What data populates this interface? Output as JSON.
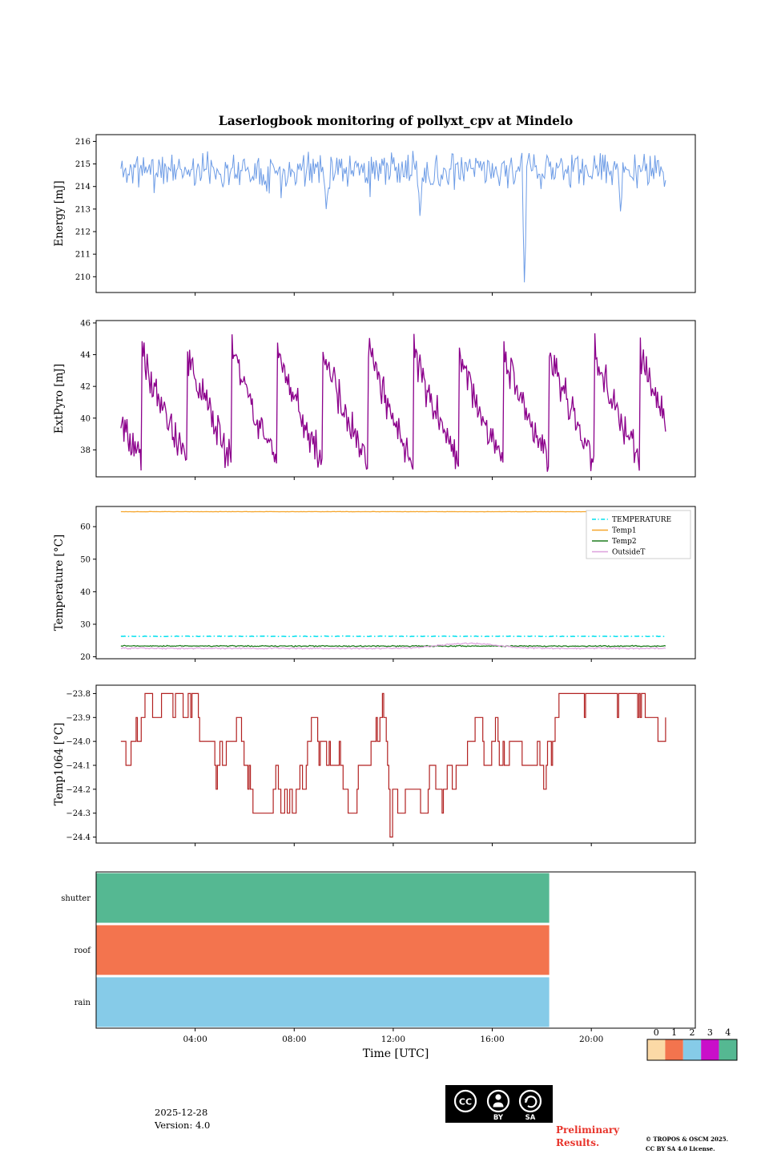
{
  "title": "Laserlogbook monitoring of pollyxt_cpv at Mindelo",
  "x_axis": {
    "label": "Time [UTC]",
    "range_hours": [
      0,
      24.2
    ],
    "tick_hours": [
      4,
      8,
      12,
      16,
      20
    ],
    "tick_labels": [
      "04:00",
      "08:00",
      "12:00",
      "16:00",
      "20:00"
    ]
  },
  "chart_data": [
    {
      "type": "line",
      "name": "energy",
      "ylabel": "Energy [mJ]",
      "ylim": [
        209.3,
        216.3
      ],
      "yticks": [
        210,
        211,
        212,
        213,
        214,
        215,
        216
      ],
      "ytick_labels": [
        "210",
        "211",
        "212",
        "213",
        "214",
        "215",
        "216"
      ],
      "x_data_range": [
        1.0,
        23.0
      ],
      "series": [
        {
          "name": "Energy",
          "color": "#6d9ce6",
          "style": "solid",
          "width": 1.0,
          "baseline": 214.75,
          "noise": 0.55,
          "spike_prob": 0.045,
          "spike_depth": 1.0,
          "dips": [
            {
              "x": 9.3,
              "y": 213.0
            },
            {
              "x": 13.1,
              "y": 212.7
            },
            {
              "x": 17.3,
              "y": 209.75
            },
            {
              "x": 21.2,
              "y": 212.9
            }
          ]
        }
      ]
    },
    {
      "type": "line",
      "name": "extpyro",
      "ylabel": "ExtPyro [mJ]",
      "ylim": [
        36.3,
        46.15
      ],
      "yticks": [
        38,
        40,
        42,
        44,
        46
      ],
      "ytick_labels": [
        "38",
        "40",
        "42",
        "44",
        "46"
      ],
      "x_data_range": [
        1.0,
        23.0
      ],
      "series": [
        {
          "name": "ExtPyro",
          "color": "#8b008b",
          "style": "solid",
          "width": 1.3,
          "pattern": "sawtooth",
          "max": 44.4,
          "min": 37.2,
          "period_hours": 1.83,
          "phase": 0.55,
          "noise": 0.8
        }
      ]
    },
    {
      "type": "line",
      "name": "temperature",
      "ylabel": "Temperature [°C]",
      "ylim": [
        19.4,
        66.2
      ],
      "yticks": [
        20,
        30,
        40,
        50,
        60
      ],
      "ytick_labels": [
        "20",
        "30",
        "40",
        "50",
        "60"
      ],
      "x_data_range": [
        1.0,
        23.0
      ],
      "legend": {
        "position": "top-right"
      },
      "series": [
        {
          "name": "TEMPERATURE",
          "color": "#00e0ee",
          "style": "dashdot",
          "width": 1.5,
          "baseline": 26.3,
          "noise": 0.06
        },
        {
          "name": "Temp1",
          "color": "#f5a52b",
          "style": "solid",
          "width": 1.3,
          "baseline": 64.6,
          "noise": 0.03
        },
        {
          "name": "Temp2",
          "color": "#1e7d1e",
          "style": "solid",
          "width": 1.3,
          "baseline": 23.3,
          "noise": 0.14
        },
        {
          "name": "OutsideT",
          "color": "#dda0dd",
          "style": "solid",
          "width": 1.2,
          "baseline": 22.6,
          "noise": 0.18,
          "bump": {
            "center": 15.0,
            "width": 1.6,
            "height": 1.5
          }
        }
      ]
    },
    {
      "type": "line",
      "name": "temp1064",
      "ylabel": "Temp1064 [°C]",
      "ylim": [
        -24.425,
        -23.765
      ],
      "yticks": [
        -24.4,
        -24.3,
        -24.2,
        -24.1,
        -24.0,
        -23.9,
        -23.8
      ],
      "ytick_labels": [
        "−24.4",
        "−24.3",
        "−24.2",
        "−24.1",
        "−24.0",
        "−23.9",
        "−23.8"
      ],
      "x_data_range": [
        1.0,
        23.0
      ],
      "series": [
        {
          "name": "Temp1064",
          "color": "#b22222",
          "style": "step",
          "width": 1.2,
          "levels": [
            -24.4,
            -24.3,
            -24.2,
            -24.1,
            -24.0,
            -23.9,
            -23.8
          ],
          "start_level": -24.0,
          "dips": [
            {
              "x": 11.85,
              "y": -24.4
            }
          ]
        }
      ]
    },
    {
      "type": "status-bars",
      "name": "status",
      "rows": [
        {
          "label": "shutter",
          "color": "#55b892",
          "start": 0.0,
          "end": 18.3
        },
        {
          "label": "roof",
          "color": "#f3744e",
          "start": 0.0,
          "end": 18.3
        },
        {
          "label": "rain",
          "color": "#86cbe8",
          "start": 0.0,
          "end": 18.3
        }
      ],
      "colorbar": {
        "tick_labels": [
          "0",
          "1",
          "2",
          "3",
          "4"
        ],
        "colors": [
          "#fbd9a6",
          "#f3744e",
          "#86cbe8",
          "#c90fc9",
          "#55b892"
        ]
      }
    }
  ],
  "footer": {
    "date": "2025-12-28",
    "version": "Version: 4.0",
    "preliminary_line1": "Preliminary",
    "preliminary_line2": "Results.",
    "preliminary_color": "#e8332a",
    "copyright_line1": "© TROPOS & OSCM 2025.",
    "copyright_line2": "CC BY SA 4.0 License.",
    "license_badge": {
      "cc": "CC",
      "by": "BY",
      "sa": "SA"
    }
  }
}
